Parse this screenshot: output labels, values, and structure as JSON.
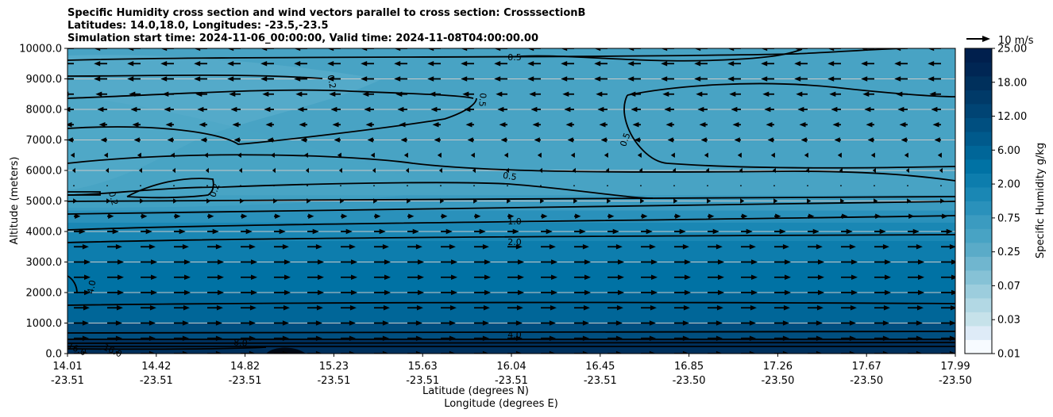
{
  "title_lines": [
    "Specific Humidity cross section and wind vectors parallel to cross section: CrosssectionB",
    "Latitudes: 14.0,18.0, Longitudes: -23.5,-23.5",
    "Simulation start time: 2024-11-06_00:00:00, Valid time: 2024-11-08T04:00:00.00"
  ],
  "chart_data": {
    "type": "heatmap",
    "title": "Specific Humidity cross section and wind vectors parallel to cross section: CrosssectionB",
    "ylabel": "Altitude (meters)",
    "xlabel_lines": [
      "Latitude (degrees N)",
      "Longitude (degrees E)"
    ],
    "ylim": [
      0,
      10000
    ],
    "yticks": [
      "0.0",
      "1000.0",
      "2000.0",
      "3000.0",
      "4000.0",
      "5000.0",
      "6000.0",
      "7000.0",
      "8000.0",
      "9000.0",
      "10000.0"
    ],
    "x_ticks": [
      {
        "lat": "14.01",
        "lon": "-23.51"
      },
      {
        "lat": "14.42",
        "lon": "-23.51"
      },
      {
        "lat": "14.82",
        "lon": "-23.51"
      },
      {
        "lat": "15.23",
        "lon": "-23.51"
      },
      {
        "lat": "15.63",
        "lon": "-23.51"
      },
      {
        "lat": "16.04",
        "lon": "-23.51"
      },
      {
        "lat": "16.45",
        "lon": "-23.51"
      },
      {
        "lat": "16.85",
        "lon": "-23.50"
      },
      {
        "lat": "17.26",
        "lon": "-23.50"
      },
      {
        "lat": "17.67",
        "lon": "-23.50"
      },
      {
        "lat": "17.99",
        "lon": "-23.50"
      }
    ],
    "grid": "horizontal",
    "colorbar": {
      "label": "Specific Humidity g/kg",
      "tick_labels": [
        "0.01",
        "0.03",
        "0.07",
        "0.25",
        "0.75",
        "2.00",
        "6.00",
        "12.00",
        "18.00",
        "25.00"
      ],
      "colors": [
        "#f7fbff",
        "#deebf7",
        "#c6e2ea",
        "#b2d8e4",
        "#9ccddd",
        "#86c2d6",
        "#70b6cf",
        "#5aabc8",
        "#48a3c4",
        "#3b9bc0",
        "#2a91bb",
        "#1a87b4",
        "#0d7dad",
        "#0072a4",
        "#006698",
        "#005a8c",
        "#004f80",
        "#004474",
        "#003a68",
        "#00305c",
        "#002654",
        "#001f4d"
      ]
    },
    "contour_labels": [
      "0.5",
      "0.2",
      "0.5",
      "0.5",
      "0.2",
      "0.2",
      "0.5",
      "1.0",
      "2.0",
      "4.0",
      "4.0",
      "8.0",
      "16.0",
      "16.0"
    ],
    "wind_reference": "10 m/s",
    "wind_u_profile": [
      {
        "altitude": 0,
        "u": 9
      },
      {
        "altitude": 1000,
        "u": 9
      },
      {
        "altitude": 2000,
        "u": 10
      },
      {
        "altitude": 3000,
        "u": 10
      },
      {
        "altitude": 3500,
        "u": 9
      },
      {
        "altitude": 4000,
        "u": 7
      },
      {
        "altitude": 4500,
        "u": 4
      },
      {
        "altitude": 5000,
        "u": 2
      },
      {
        "altitude": 5500,
        "u": 0.5
      },
      {
        "altitude": 6000,
        "u": -1
      },
      {
        "altitude": 6500,
        "u": -2
      },
      {
        "altitude": 7000,
        "u": -4
      },
      {
        "altitude": 8000,
        "u": -6
      },
      {
        "altitude": 9000,
        "u": -8
      },
      {
        "altitude": 10000,
        "u": -8
      }
    ],
    "humidity_bands": [
      {
        "from": 0,
        "to": 500,
        "value": 18
      },
      {
        "from": 500,
        "to": 1000,
        "value": 10
      },
      {
        "from": 1000,
        "to": 2000,
        "value": 7
      },
      {
        "from": 2000,
        "to": 3000,
        "value": 5
      },
      {
        "from": 3000,
        "to": 3700,
        "value": 3
      },
      {
        "from": 3700,
        "to": 4300,
        "value": 1.8
      },
      {
        "from": 4300,
        "to": 4700,
        "value": 1.2
      },
      {
        "from": 4700,
        "to": 5200,
        "value": 0.7
      },
      {
        "from": 5200,
        "to": 6000,
        "value": 0.4
      },
      {
        "from": 6000,
        "to": 7000,
        "value": 0.45
      },
      {
        "from": 7000,
        "to": 8500,
        "value": 0.5
      },
      {
        "from": 8500,
        "to": 10000,
        "value": 0.45
      }
    ]
  }
}
